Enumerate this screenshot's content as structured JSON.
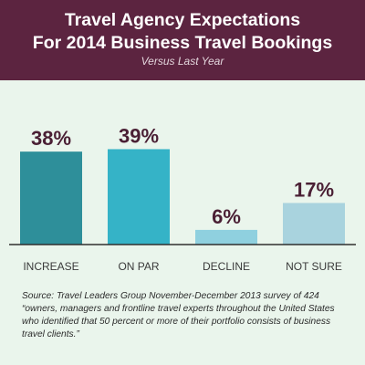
{
  "chart_data": {
    "type": "bar",
    "title": "Travel Agency Expectations\nFor 2014 Business Travel Bookings",
    "subtitle": "Versus Last Year",
    "categories": [
      "INCREASE",
      "ON PAR",
      "DECLINE",
      "NOT SURE"
    ],
    "values": [
      38,
      39,
      6,
      17
    ],
    "value_labels": [
      "38%",
      "39%",
      "6%",
      "17%"
    ],
    "bar_colors": [
      "#2e8f9a",
      "#35b3c7",
      "#8fd0df",
      "#a9d3de"
    ],
    "ylim": [
      0,
      45
    ],
    "grid": false,
    "legend": "none"
  },
  "colors": {
    "header_bg": "#5c2440",
    "card_bg": "#eaf5ec",
    "label_text": "#4a1f34"
  },
  "source_note": "Source: Travel Leaders Group November-December 2013 survey of 424 “owners, managers and frontline travel experts throughout the United States who identified that 50 percent or more of their portfolio consists of business travel clients.”"
}
